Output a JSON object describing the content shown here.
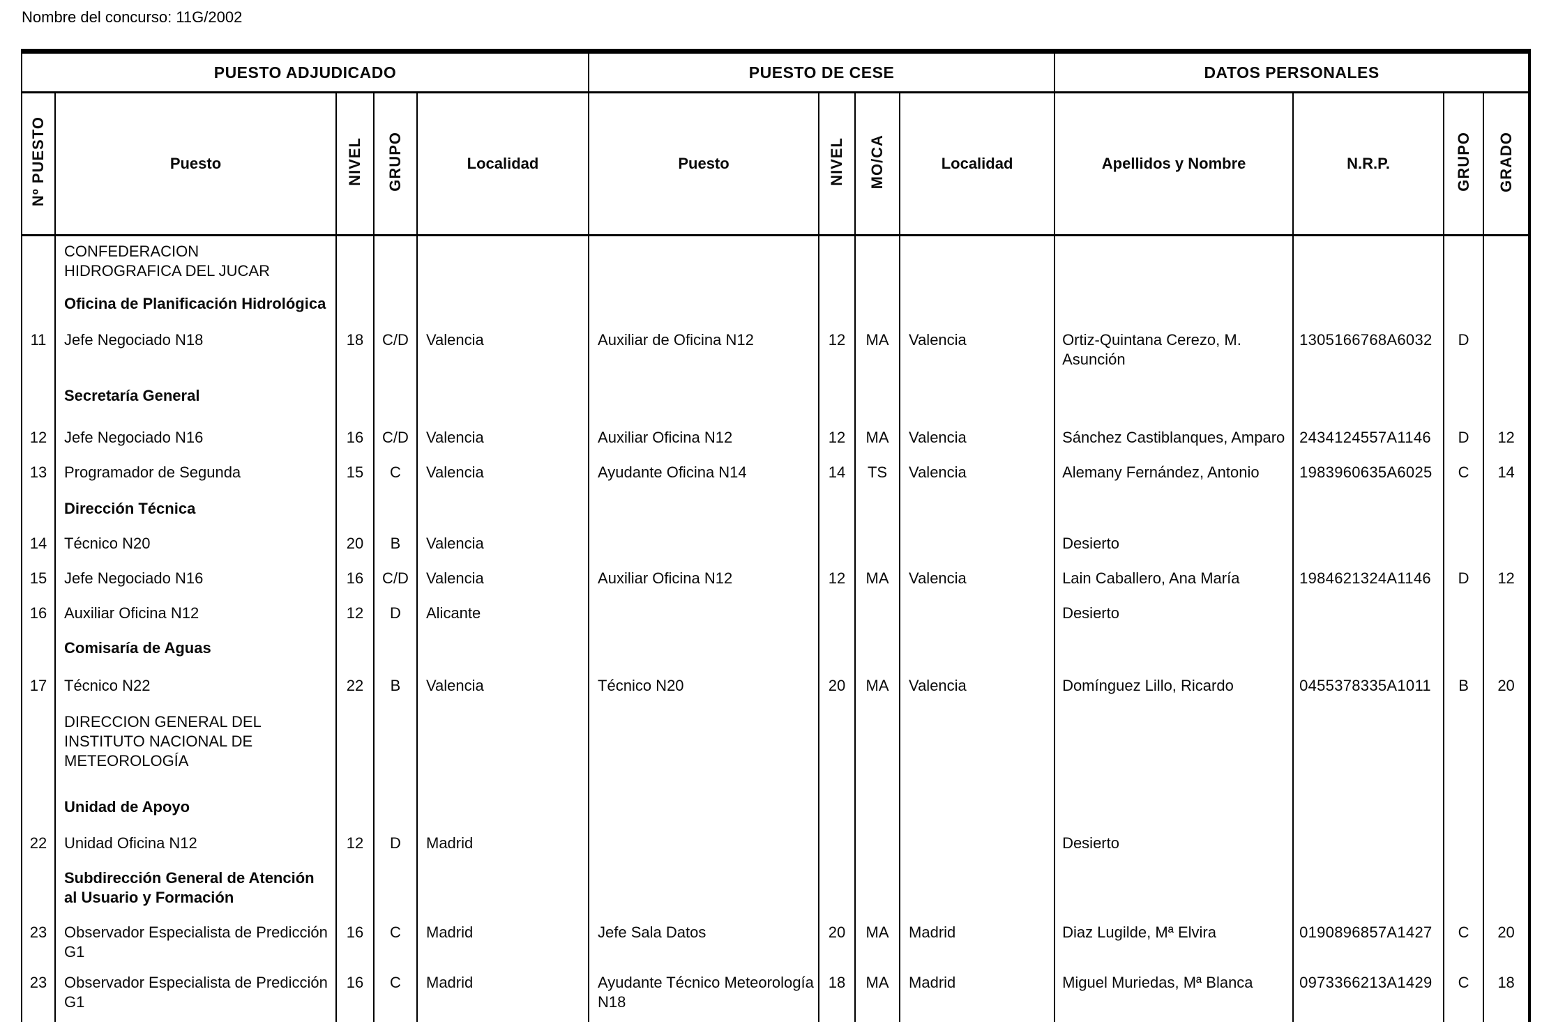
{
  "page": {
    "title_label": "Nombre del concurso: 11G/2002"
  },
  "table": {
    "groups": [
      {
        "label": "PUESTO ADJUDICADO"
      },
      {
        "label": "PUESTO DE CESE"
      },
      {
        "label": "DATOS PERSONALES"
      }
    ],
    "columns": [
      {
        "label": "Nº PUESTO"
      },
      {
        "label": "Puesto"
      },
      {
        "label": "NIVEL"
      },
      {
        "label": "GRUPO"
      },
      {
        "label": "Localidad"
      },
      {
        "label": "Puesto"
      },
      {
        "label": "NIVEL"
      },
      {
        "label": "MO/CA"
      },
      {
        "label": "Localidad"
      },
      {
        "label": "Apellidos y Nombre"
      },
      {
        "label": "N.R.P."
      },
      {
        "label": "GRUPO"
      },
      {
        "label": "GRADO"
      }
    ],
    "rows": [
      {
        "style": "section",
        "puesto": "CONFEDERACION HIDROGRAFICA DEL JUCAR"
      },
      {
        "style": "subsection",
        "puesto": "Oficina de Planificación Hidrológica"
      },
      {
        "style": "data",
        "num": "11",
        "puesto": "Jefe Negociado N18",
        "nivel": "18",
        "grupo": "C/D",
        "localidad": "Valencia",
        "cese_puesto": "Auxiliar de Oficina N12",
        "cese_nivel": "12",
        "cese_moca": "MA",
        "cese_localidad": "Valencia",
        "nombre": "Ortiz-Quintana Cerezo, M. Asunción",
        "nrp": "1305166768A6032",
        "dp_grupo": "D",
        "grado": ""
      },
      {
        "style": "subsection",
        "puesto": "Secretaría General"
      },
      {
        "style": "data",
        "num": "12",
        "puesto": "Jefe Negociado N16",
        "nivel": "16",
        "grupo": "C/D",
        "localidad": "Valencia",
        "cese_puesto": "Auxiliar Oficina N12",
        "cese_nivel": "12",
        "cese_moca": "MA",
        "cese_localidad": "Valencia",
        "nombre": "Sánchez Castiblanques, Amparo",
        "nrp": "2434124557A1146",
        "dp_grupo": "D",
        "grado": "12"
      },
      {
        "style": "data",
        "num": "13",
        "puesto": "Programador de Segunda",
        "nivel": "15",
        "grupo": "C",
        "localidad": "Valencia",
        "cese_puesto": "Ayudante Oficina N14",
        "cese_nivel": "14",
        "cese_moca": "TS",
        "cese_localidad": "Valencia",
        "nombre": "Alemany Fernández, Antonio",
        "nrp": "1983960635A6025",
        "dp_grupo": "C",
        "grado": "14"
      },
      {
        "style": "subsection",
        "puesto": "Dirección Técnica"
      },
      {
        "style": "data",
        "num": "14",
        "puesto": "Técnico N20",
        "nivel": "20",
        "grupo": "B",
        "localidad": "Valencia",
        "cese_puesto": "",
        "cese_nivel": "",
        "cese_moca": "",
        "cese_localidad": "",
        "nombre": "Desierto",
        "nrp": "",
        "dp_grupo": "",
        "grado": ""
      },
      {
        "style": "data",
        "num": "15",
        "puesto": "Jefe Negociado N16",
        "nivel": "16",
        "grupo": "C/D",
        "localidad": "Valencia",
        "cese_puesto": "Auxiliar Oficina N12",
        "cese_nivel": "12",
        "cese_moca": "MA",
        "cese_localidad": "Valencia",
        "nombre": "Lain Caballero, Ana María",
        "nrp": "1984621324A1146",
        "dp_grupo": "D",
        "grado": "12"
      },
      {
        "style": "data",
        "num": "16",
        "puesto": "Auxiliar Oficina N12",
        "nivel": "12",
        "grupo": "D",
        "localidad": "Alicante",
        "cese_puesto": "",
        "cese_nivel": "",
        "cese_moca": "",
        "cese_localidad": "",
        "nombre": "Desierto",
        "nrp": "",
        "dp_grupo": "",
        "grado": ""
      },
      {
        "style": "subsection",
        "puesto": "Comisaría de Aguas"
      },
      {
        "style": "data",
        "num": "17",
        "puesto": "Técnico N22",
        "nivel": "22",
        "grupo": "B",
        "localidad": "Valencia",
        "cese_puesto": "Técnico N20",
        "cese_nivel": "20",
        "cese_moca": "MA",
        "cese_localidad": "Valencia",
        "nombre": "Domínguez Lillo, Ricardo",
        "nrp": "0455378335A1011",
        "dp_grupo": "B",
        "grado": "20"
      },
      {
        "style": "section",
        "puesto": "DIRECCION GENERAL DEL INSTITUTO NACIONAL DE METEOROLOGÍA"
      },
      {
        "style": "subsection",
        "puesto": "Unidad de Apoyo"
      },
      {
        "style": "data",
        "num": "22",
        "puesto": "Unidad Oficina N12",
        "nivel": "12",
        "grupo": "D",
        "localidad": "Madrid",
        "cese_puesto": "",
        "cese_nivel": "",
        "cese_moca": "",
        "cese_localidad": "",
        "nombre": "Desierto",
        "nrp": "",
        "dp_grupo": "",
        "grado": ""
      },
      {
        "style": "subsection",
        "puesto": "Subdirección General de Atención al Usuario y Formación"
      },
      {
        "style": "data",
        "num": "23",
        "puesto": "Observador Especialista de Predicción G1",
        "nivel": "16",
        "grupo": "C",
        "localidad": "Madrid",
        "cese_puesto": "Jefe Sala Datos",
        "cese_nivel": "20",
        "cese_moca": "MA",
        "cese_localidad": "Madrid",
        "nombre": "Diaz Lugilde, Mª Elvira",
        "nrp": "0190896857A1427",
        "dp_grupo": "C",
        "grado": "20"
      },
      {
        "style": "data",
        "num": "23",
        "puesto": "Observador Especialista de Predicción G1",
        "nivel": "16",
        "grupo": "C",
        "localidad": "Madrid",
        "cese_puesto": "Ayudante Técnico Meteorología N18",
        "cese_nivel": "18",
        "cese_moca": "MA",
        "cese_localidad": "Madrid",
        "nombre": "Miguel Muriedas, Mª Blanca",
        "nrp": "0973366213A1429",
        "dp_grupo": "C",
        "grado": "18"
      }
    ]
  }
}
